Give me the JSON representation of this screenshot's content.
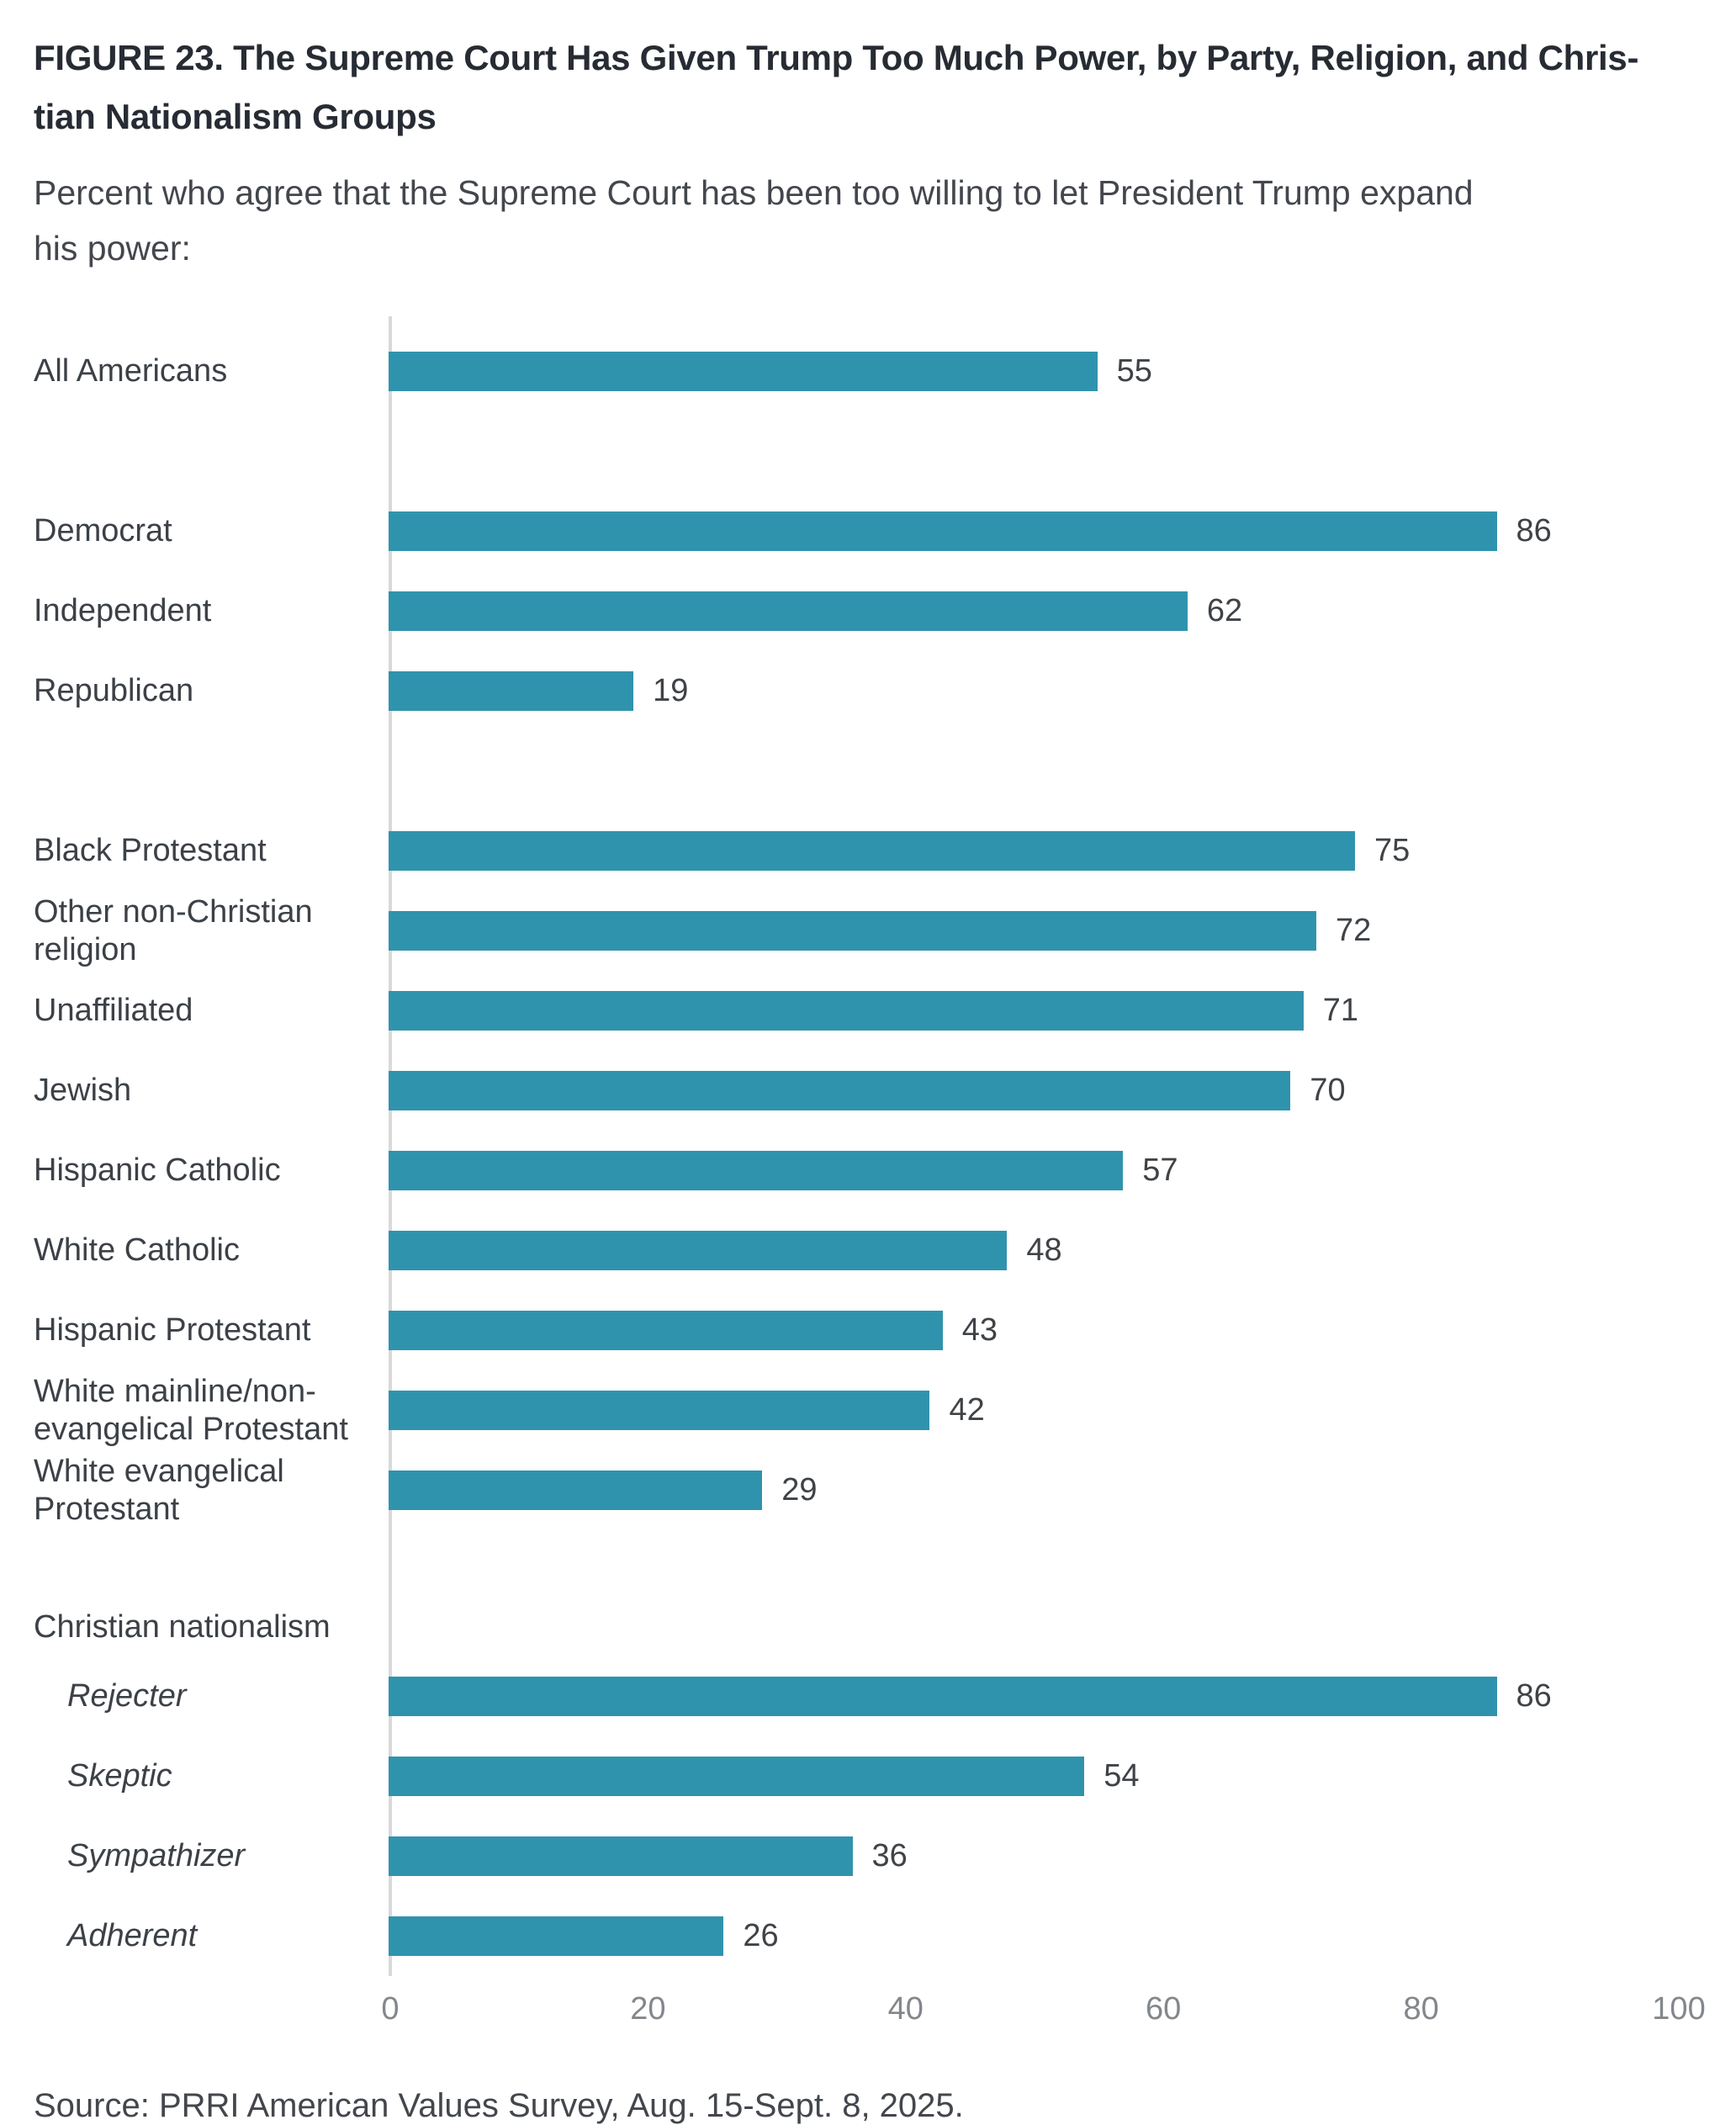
{
  "figure": {
    "title_lines": [
      "FIGURE 23.  The Supreme Court Has Given Trump Too Much Power, by Party, Religion, and Chris-",
      "tian Nationalism Groups"
    ],
    "subtitle_lines": [
      "Percent who agree that the Supreme Court has been too willing to let President Trump expand",
      "his power:"
    ],
    "source": "Source: PRRI American Values Survey, Aug. 15-Sept. 8, 2025."
  },
  "chart_data": {
    "type": "bar",
    "orientation": "horizontal",
    "title": "The Supreme Court Has Given Trump Too Much Power, by Party, Religion, and Christian Nationalism Groups",
    "xlabel": "Percent who agree",
    "xlim": [
      0,
      100
    ],
    "x_ticks": [
      0,
      20,
      40,
      60,
      80,
      100
    ],
    "grid": false,
    "bar_color": "#3093ad",
    "axis_line_color": "#d9d9d9",
    "categories": [
      "All Americans",
      "Democrat",
      "Independent",
      "Republican",
      "Black Protestant",
      "Other non-Christian religion",
      "Unaffiliated",
      "Jewish",
      "Hispanic Catholic",
      "White Catholic",
      "Hispanic Protestant",
      "White mainline/non-evangelical Protestant",
      "White evangelical Protestant",
      "Christian nationalism Rejecter",
      "Christian nationalism Skeptic",
      "Christian nationalism Sympathizer",
      "Christian nationalism Adherent"
    ],
    "values": [
      55,
      86,
      62,
      19,
      75,
      72,
      71,
      70,
      57,
      48,
      43,
      42,
      29,
      86,
      54,
      36,
      26
    ],
    "rows": [
      {
        "type": "bar",
        "label": "All Americans",
        "value": 55
      },
      {
        "type": "gap"
      },
      {
        "type": "bar",
        "label": "Democrat",
        "value": 86
      },
      {
        "type": "bar",
        "label": "Independent",
        "value": 62
      },
      {
        "type": "bar",
        "label": "Republican",
        "value": 19
      },
      {
        "type": "gap"
      },
      {
        "type": "bar",
        "label": "Black Protestant",
        "value": 75
      },
      {
        "type": "bar",
        "label": "Other non-Christian religion",
        "lines": [
          "Other non-Christian",
          "religion"
        ],
        "value": 72
      },
      {
        "type": "bar",
        "label": "Unaffiliated",
        "value": 71
      },
      {
        "type": "bar",
        "label": "Jewish",
        "value": 70
      },
      {
        "type": "bar",
        "label": "Hispanic Catholic",
        "value": 57
      },
      {
        "type": "bar",
        "label": "White Catholic",
        "value": 48
      },
      {
        "type": "bar",
        "label": "Hispanic Protestant",
        "value": 43
      },
      {
        "type": "bar",
        "label": "White mainline/non-evangelical Protestant",
        "lines": [
          "White mainline/non-",
          "evangelical Protestant"
        ],
        "value": 42
      },
      {
        "type": "bar",
        "label": "White evangelical Protestant",
        "lines": [
          "White evangelical",
          "Protestant"
        ],
        "value": 29
      },
      {
        "type": "gap",
        "height": 80
      },
      {
        "type": "header",
        "label": "Christian nationalism"
      },
      {
        "type": "bar",
        "label": "Rejecter",
        "value": 86,
        "italic": true
      },
      {
        "type": "bar",
        "label": "Skeptic",
        "value": 54,
        "italic": true
      },
      {
        "type": "bar",
        "label": "Sympathizer",
        "value": 36,
        "italic": true
      },
      {
        "type": "bar",
        "label": "Adherent",
        "value": 26,
        "italic": true
      }
    ]
  }
}
